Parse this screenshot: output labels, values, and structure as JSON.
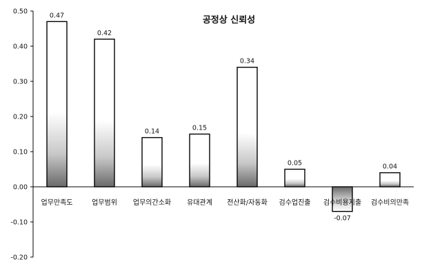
{
  "chart_data": {
    "type": "bar",
    "title": "공정상 신뢰성",
    "categories": [
      "업무만족도",
      "업무범위",
      "업무의간소화",
      "유대관계",
      "전산화/자동화",
      "검수업진출",
      "검수비용지출",
      "검수비의만족"
    ],
    "values": [
      0.47,
      0.42,
      0.14,
      0.15,
      0.34,
      0.05,
      -0.07,
      0.04
    ],
    "data_labels": [
      "0.47",
      "0.42",
      "0.14",
      "0.15",
      "0.34",
      "0.05",
      "-0.07",
      "0.04"
    ],
    "y_ticks": [
      "0.50",
      "0.40",
      "0.30",
      "0.20",
      "0.10",
      "0.00",
      "-0.10",
      "-0.20"
    ],
    "ylim": [
      -0.2,
      0.5
    ],
    "grid": false,
    "legend": "none",
    "colors": {
      "bar_top": "#ffffff",
      "bar_bottom": "#707070",
      "stroke": "#000000"
    }
  }
}
